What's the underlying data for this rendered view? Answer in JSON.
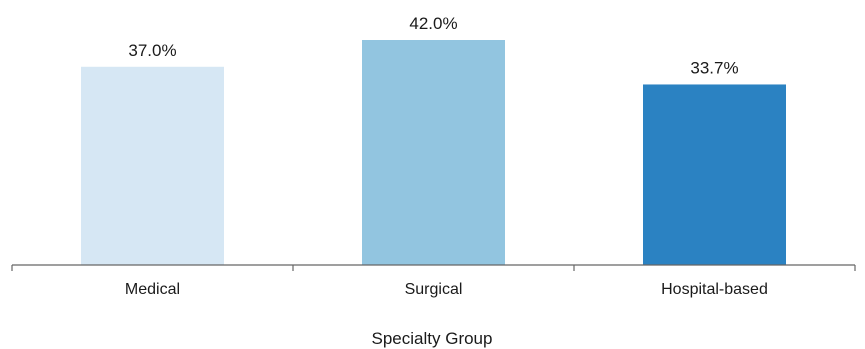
{
  "chart_data": {
    "type": "bar",
    "categories": [
      "Medical",
      "Surgical",
      "Hospital-based"
    ],
    "values": [
      37.0,
      42.0,
      33.7
    ],
    "data_labels": [
      "37.0%",
      "42.0%",
      "33.7%"
    ],
    "colors": [
      "#d6e7f4",
      "#92c5e0",
      "#2b82c2"
    ],
    "title": "",
    "xlabel": "Specialty Group",
    "ylabel": "",
    "ylim": [
      0,
      42.0
    ],
    "grid": false,
    "legend": "none"
  }
}
